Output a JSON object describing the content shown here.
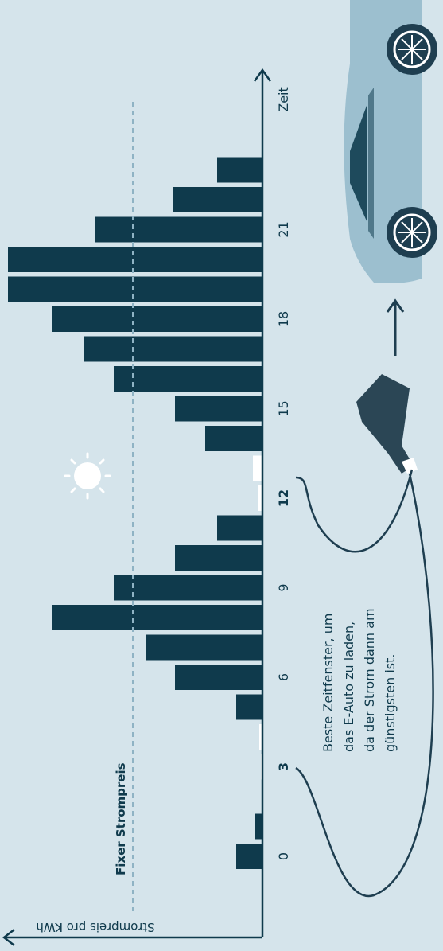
{
  "chart_data": {
    "type": "bar",
    "orientation": "horizontal",
    "x_label": "Zeit",
    "y_label": "Strompreis pro KWh",
    "categories": [
      "0",
      null,
      null,
      "3",
      null,
      null,
      "6",
      null,
      null,
      "9",
      null,
      null,
      "12",
      null,
      null,
      "15",
      null,
      null,
      "18",
      null,
      null,
      "21",
      null,
      null
    ],
    "values": [
      33,
      10,
      0,
      2,
      4,
      33,
      110,
      147,
      264,
      187,
      110,
      57,
      5,
      12,
      72,
      110,
      187,
      225,
      264,
      320,
      320,
      210,
      112,
      57
    ],
    "colors": [
      "#0f3a4c",
      "#0f3a4c",
      "#0f3a4c",
      "#ffffff",
      "#ffffff",
      "#0f3a4c",
      "#0f3a4c",
      "#0f3a4c",
      "#0f3a4c",
      "#0f3a4c",
      "#0f3a4c",
      "#0f3a4c",
      "#ffffff",
      "#ffffff",
      "#0f3a4c",
      "#0f3a4c",
      "#0f3a4c",
      "#0f3a4c",
      "#0f3a4c",
      "#0f3a4c",
      "#0f3a4c",
      "#0f3a4c",
      "#0f3a4c",
      "#0f3a4c"
    ],
    "bold_categories": [
      "3",
      "12"
    ],
    "ylim": [
      0,
      320
    ],
    "reference_line": {
      "value": 163,
      "label": "Fixer Strompreis",
      "color": "#8fb3c4"
    },
    "annotation": [
      "Beste Zeitfenster, um",
      "das E-Auto zu laden,",
      "da der Strom dann am",
      "günstigsten ist."
    ]
  }
}
